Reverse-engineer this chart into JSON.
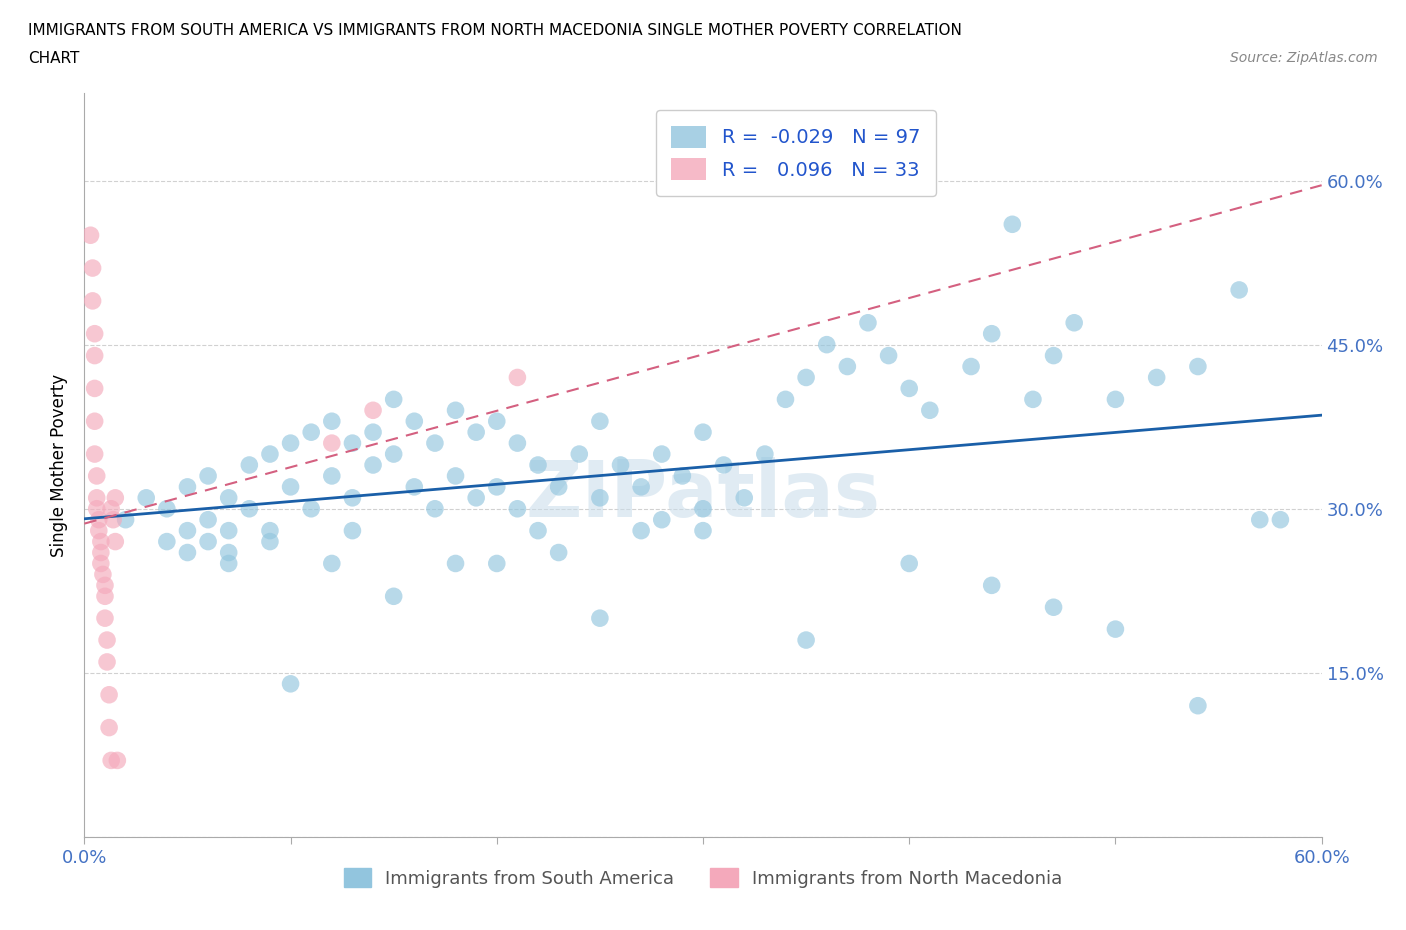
{
  "title_line1": "IMMIGRANTS FROM SOUTH AMERICA VS IMMIGRANTS FROM NORTH MACEDONIA SINGLE MOTHER POVERTY CORRELATION",
  "title_line2": "CHART",
  "source": "Source: ZipAtlas.com",
  "ylabel": "Single Mother Poverty",
  "xlim": [
    0.0,
    0.6
  ],
  "ylim": [
    0.0,
    0.68
  ],
  "color_blue": "#92c5de",
  "color_pink": "#f4a9bb",
  "trend_blue": "#1a5fa8",
  "trend_pink": "#d46080",
  "R_blue": -0.029,
  "N_blue": 97,
  "R_pink": 0.096,
  "N_pink": 33,
  "legend_label_blue": "Immigrants from South America",
  "legend_label_pink": "Immigrants from North Macedonia",
  "watermark": "ZIPatlas",
  "background_color": "#ffffff",
  "grid_color": "#cccccc",
  "blue_x": [
    0.02,
    0.03,
    0.04,
    0.04,
    0.05,
    0.05,
    0.05,
    0.06,
    0.06,
    0.06,
    0.07,
    0.07,
    0.07,
    0.08,
    0.08,
    0.09,
    0.09,
    0.1,
    0.1,
    0.11,
    0.11,
    0.12,
    0.12,
    0.13,
    0.13,
    0.14,
    0.14,
    0.15,
    0.15,
    0.16,
    0.16,
    0.17,
    0.17,
    0.18,
    0.18,
    0.19,
    0.19,
    0.2,
    0.2,
    0.21,
    0.21,
    0.22,
    0.22,
    0.23,
    0.23,
    0.24,
    0.25,
    0.25,
    0.26,
    0.27,
    0.27,
    0.28,
    0.28,
    0.29,
    0.3,
    0.3,
    0.31,
    0.32,
    0.33,
    0.34,
    0.35,
    0.36,
    0.37,
    0.38,
    0.39,
    0.4,
    0.41,
    0.43,
    0.44,
    0.45,
    0.46,
    0.47,
    0.48,
    0.5,
    0.52,
    0.54,
    0.56,
    0.58,
    0.07,
    0.09,
    0.1,
    0.12,
    0.13,
    0.15,
    0.18,
    0.2,
    0.25,
    0.3,
    0.35,
    0.4,
    0.44,
    0.47,
    0.5,
    0.54,
    0.57
  ],
  "blue_y": [
    0.29,
    0.31,
    0.27,
    0.3,
    0.32,
    0.28,
    0.26,
    0.33,
    0.29,
    0.27,
    0.31,
    0.28,
    0.26,
    0.34,
    0.3,
    0.35,
    0.28,
    0.36,
    0.32,
    0.37,
    0.3,
    0.38,
    0.33,
    0.36,
    0.31,
    0.37,
    0.34,
    0.4,
    0.35,
    0.38,
    0.32,
    0.36,
    0.3,
    0.39,
    0.33,
    0.37,
    0.31,
    0.38,
    0.32,
    0.36,
    0.3,
    0.34,
    0.28,
    0.32,
    0.26,
    0.35,
    0.38,
    0.31,
    0.34,
    0.32,
    0.28,
    0.35,
    0.29,
    0.33,
    0.37,
    0.3,
    0.34,
    0.31,
    0.35,
    0.4,
    0.42,
    0.45,
    0.43,
    0.47,
    0.44,
    0.41,
    0.39,
    0.43,
    0.46,
    0.56,
    0.4,
    0.44,
    0.47,
    0.4,
    0.42,
    0.43,
    0.5,
    0.29,
    0.25,
    0.27,
    0.14,
    0.25,
    0.28,
    0.22,
    0.25,
    0.25,
    0.2,
    0.28,
    0.18,
    0.25,
    0.23,
    0.21,
    0.19,
    0.12,
    0.29
  ],
  "pink_x": [
    0.003,
    0.004,
    0.004,
    0.005,
    0.005,
    0.005,
    0.005,
    0.005,
    0.006,
    0.006,
    0.006,
    0.007,
    0.007,
    0.008,
    0.008,
    0.008,
    0.009,
    0.01,
    0.01,
    0.01,
    0.011,
    0.011,
    0.012,
    0.012,
    0.013,
    0.013,
    0.014,
    0.015,
    0.015,
    0.016,
    0.12,
    0.14,
    0.21
  ],
  "pink_y": [
    0.55,
    0.52,
    0.49,
    0.46,
    0.44,
    0.41,
    0.38,
    0.35,
    0.33,
    0.31,
    0.3,
    0.29,
    0.28,
    0.27,
    0.26,
    0.25,
    0.24,
    0.23,
    0.22,
    0.2,
    0.18,
    0.16,
    0.13,
    0.1,
    0.07,
    0.3,
    0.29,
    0.31,
    0.27,
    0.07,
    0.36,
    0.39,
    0.42
  ]
}
